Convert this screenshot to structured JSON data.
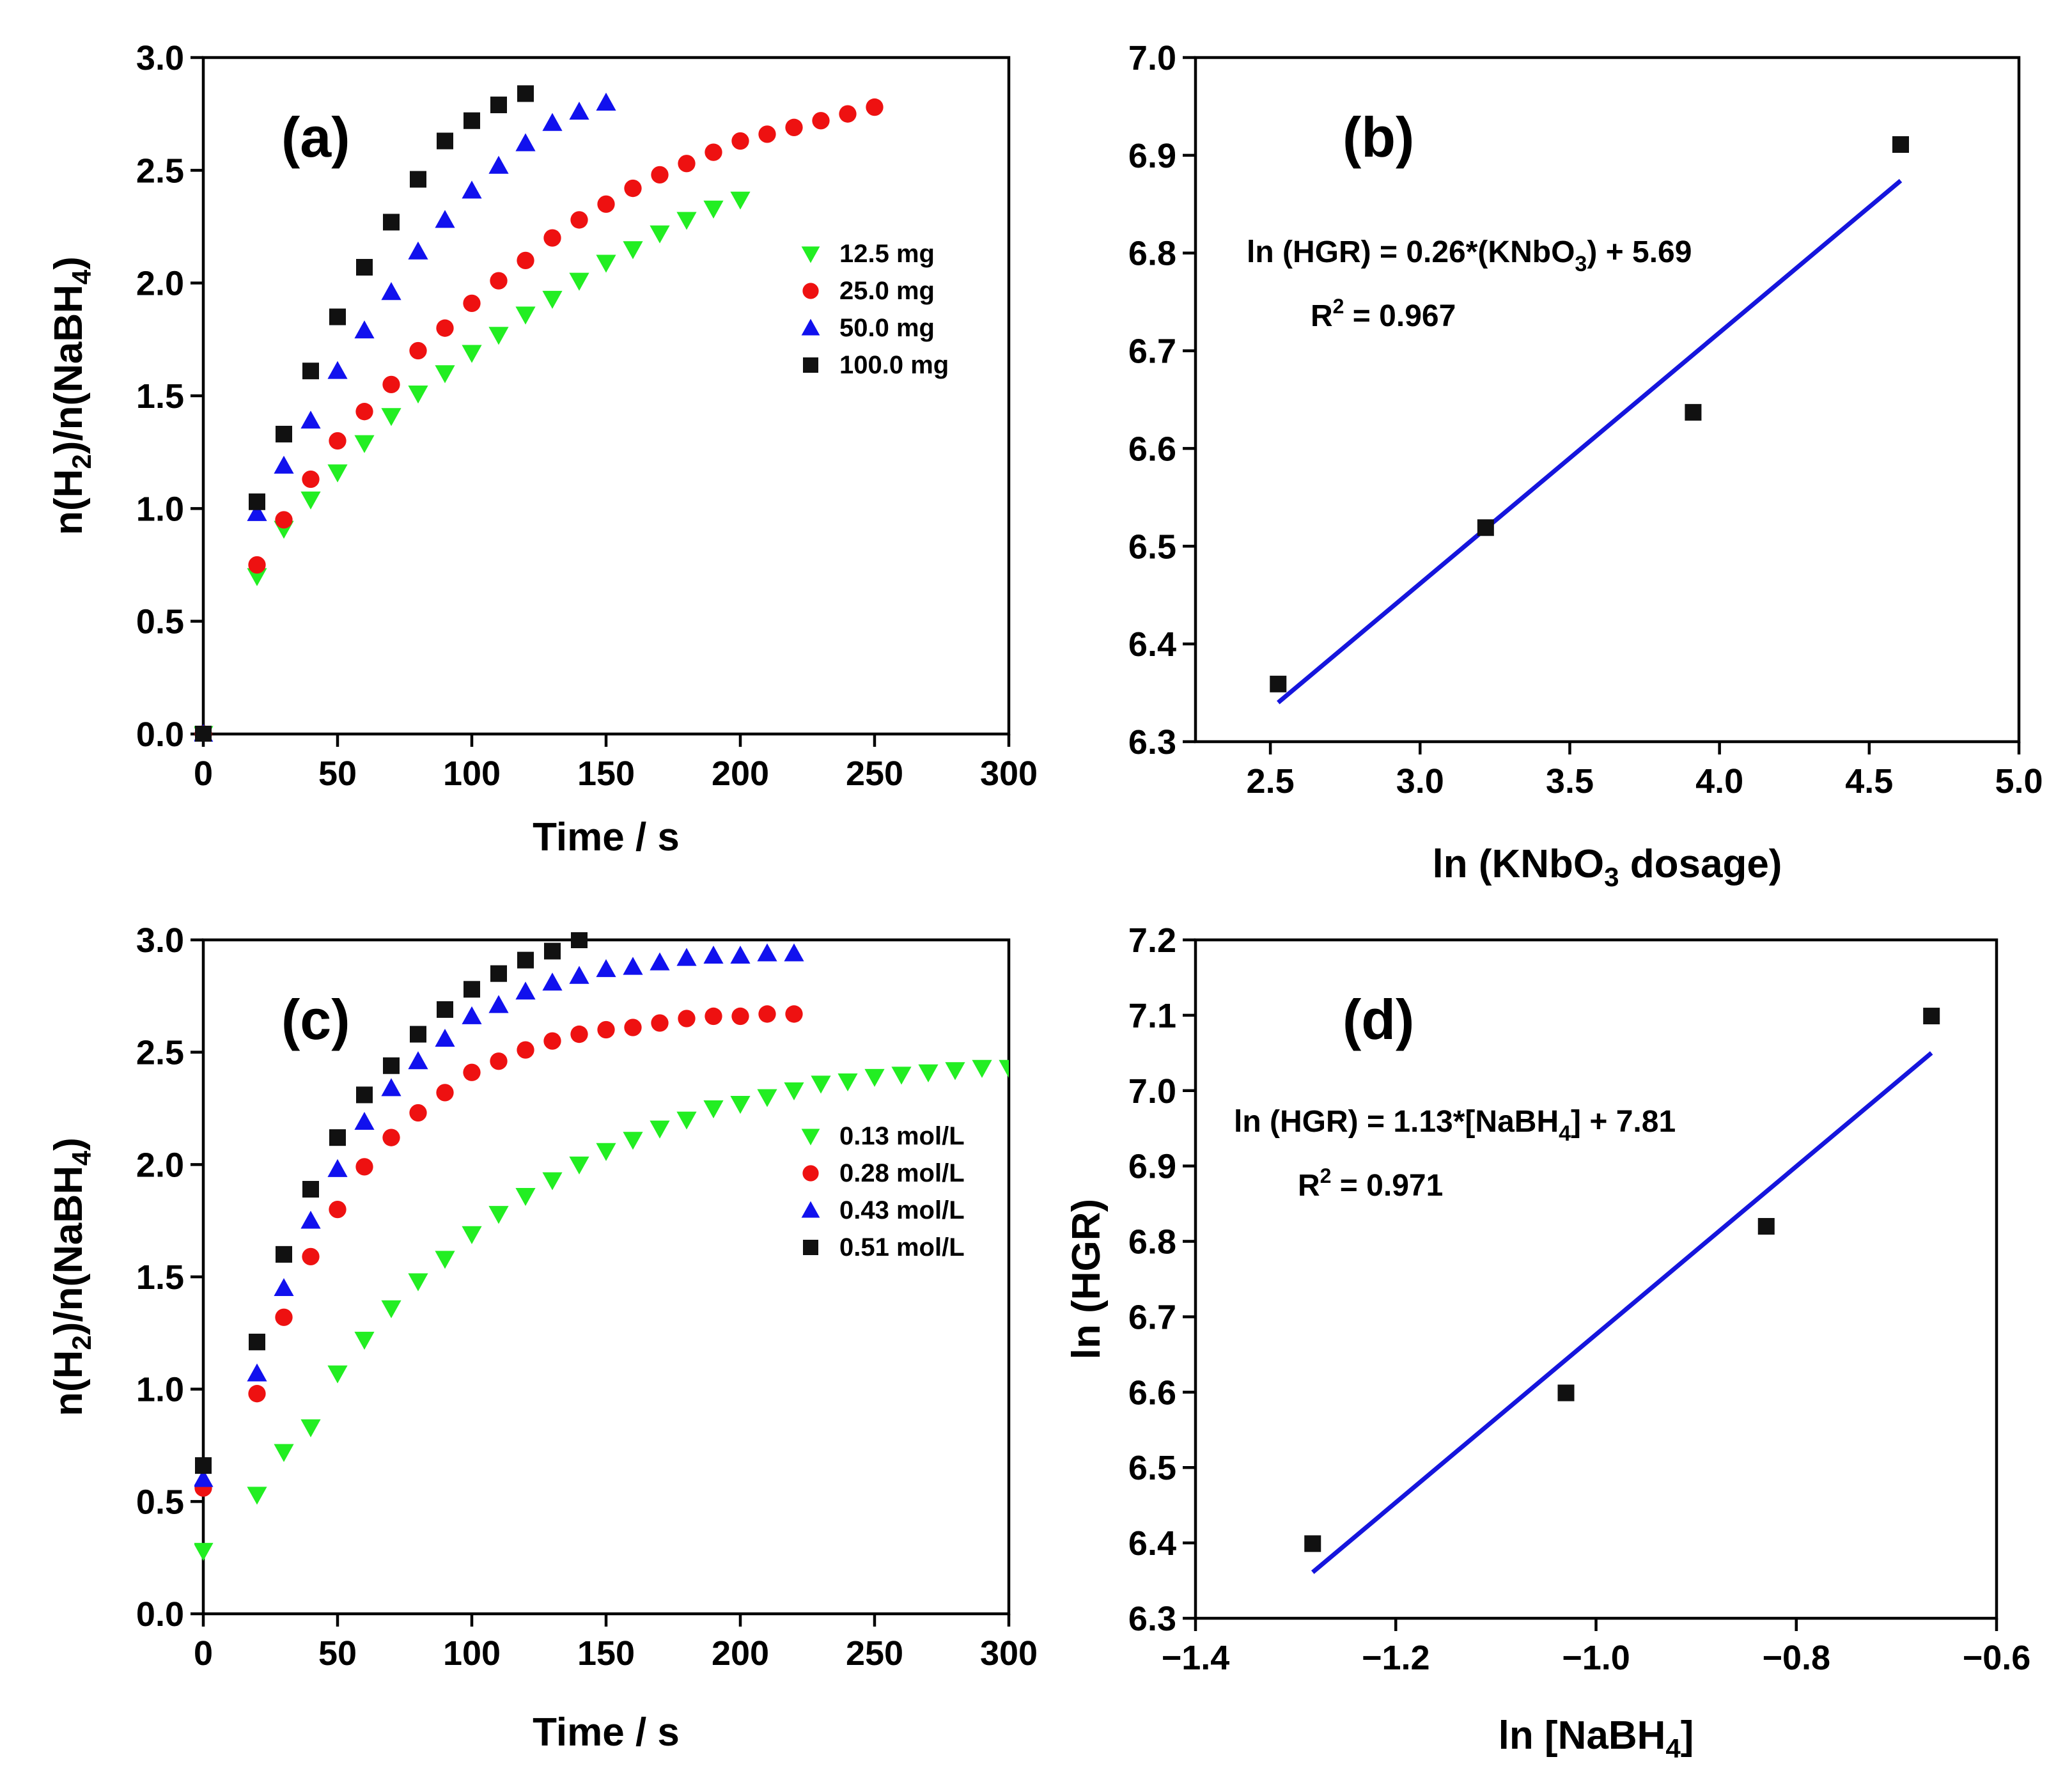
{
  "chart_data": [
    {
      "id": "a",
      "type": "scatter",
      "panel_label": "(a)",
      "xlabel": "Time / s",
      "ylabel_parts": [
        "n(H",
        "2",
        ")/n(NaBH",
        "4",
        ")"
      ],
      "xlim": [
        0,
        300
      ],
      "ylim": [
        0,
        3.0
      ],
      "xticks": [
        0,
        50,
        100,
        150,
        200,
        250,
        300
      ],
      "xtick_labels": [
        "0",
        "50",
        "100",
        "150",
        "200",
        "250",
        "300"
      ],
      "yticks": [
        0,
        0.5,
        1.0,
        1.5,
        2.0,
        2.5,
        3.0
      ],
      "ytick_labels": [
        "0.0",
        "0.5",
        "1.0",
        "1.5",
        "2.0",
        "2.5",
        "3.0"
      ],
      "legend_position": "right",
      "series": [
        {
          "name": "12.5 mg",
          "marker": "triangle-down",
          "color": "#22ee22",
          "x": [
            0,
            20,
            30,
            40,
            50,
            60,
            70,
            80,
            90,
            100,
            110,
            120,
            130,
            140,
            150,
            160,
            170,
            180,
            190,
            200
          ],
          "y": [
            0.0,
            0.7,
            0.91,
            1.04,
            1.16,
            1.29,
            1.41,
            1.51,
            1.6,
            1.69,
            1.77,
            1.86,
            1.93,
            2.01,
            2.09,
            2.15,
            2.22,
            2.28,
            2.33,
            2.37
          ]
        },
        {
          "name": "25.0 mg",
          "marker": "circle",
          "color": "#ee1111",
          "x": [
            0,
            20,
            30,
            40,
            50,
            60,
            70,
            80,
            90,
            100,
            110,
            120,
            130,
            140,
            150,
            160,
            170,
            180,
            190,
            200,
            210,
            220,
            230,
            240,
            250
          ],
          "y": [
            0.0,
            0.75,
            0.95,
            1.13,
            1.3,
            1.43,
            1.55,
            1.7,
            1.8,
            1.91,
            2.01,
            2.1,
            2.2,
            2.28,
            2.35,
            2.42,
            2.48,
            2.53,
            2.58,
            2.63,
            2.66,
            2.69,
            2.72,
            2.75,
            2.78
          ]
        },
        {
          "name": "50.0 mg",
          "marker": "triangle-up",
          "color": "#1111ee",
          "x": [
            0,
            20,
            30,
            40,
            50,
            60,
            70,
            80,
            90,
            100,
            110,
            120,
            130,
            140,
            150
          ],
          "y": [
            0.0,
            0.98,
            1.19,
            1.39,
            1.61,
            1.79,
            1.96,
            2.14,
            2.28,
            2.41,
            2.52,
            2.62,
            2.71,
            2.76,
            2.8
          ]
        },
        {
          "name": "100.0 mg",
          "marker": "square",
          "color": "#111111",
          "x": [
            0,
            20,
            30,
            40,
            50,
            60,
            70,
            80,
            90,
            100,
            110,
            120
          ],
          "y": [
            0.0,
            1.03,
            1.33,
            1.61,
            1.85,
            2.07,
            2.27,
            2.46,
            2.63,
            2.72,
            2.79,
            2.84
          ]
        }
      ]
    },
    {
      "id": "b",
      "type": "scatter",
      "panel_label": "(b)",
      "xlabel_parts": [
        "ln (KNbO",
        "3",
        " dosage)"
      ],
      "ylabel": "",
      "xlim": [
        2.25,
        5.0
      ],
      "ylim": [
        6.3,
        7.0
      ],
      "xticks": [
        2.5,
        3.0,
        3.5,
        4.0,
        4.5,
        5.0
      ],
      "xtick_labels": [
        "2.5",
        "3.0",
        "3.5",
        "4.0",
        "4.5",
        "5.0"
      ],
      "yticks": [
        6.3,
        6.4,
        6.5,
        6.6,
        6.7,
        6.8,
        6.9,
        7.0
      ],
      "ytick_labels": [
        "6.3",
        "6.4",
        "6.5",
        "6.6",
        "6.7",
        "6.8",
        "6.9",
        "7.0"
      ],
      "points": {
        "color": "#111111",
        "marker": "square",
        "x": [
          2.526,
          3.219,
          3.912,
          4.605
        ],
        "y": [
          6.359,
          6.519,
          6.637,
          6.911
        ]
      },
      "fit_line": {
        "color": "#1515dd",
        "x": [
          2.526,
          4.605
        ],
        "y": [
          6.34,
          6.874
        ]
      },
      "equation_parts": [
        "ln (HGR) = 0.26*(KNbO",
        "3",
        ") + 5.69"
      ],
      "r2_label": "R",
      "r2_sup": "2",
      "r2_value": " = 0.967"
    },
    {
      "id": "c",
      "type": "scatter",
      "panel_label": "(c)",
      "xlabel": "Time / s",
      "ylabel_parts": [
        "n(H",
        "2",
        ")/n(NaBH",
        "4",
        ")"
      ],
      "xlim": [
        0,
        300
      ],
      "ylim": [
        0,
        3.0
      ],
      "xticks": [
        0,
        50,
        100,
        150,
        200,
        250,
        300
      ],
      "xtick_labels": [
        "0",
        "50",
        "100",
        "150",
        "200",
        "250",
        "300"
      ],
      "yticks": [
        0,
        0.5,
        1.0,
        1.5,
        2.0,
        2.5,
        3.0
      ],
      "ytick_labels": [
        "0.0",
        "0.5",
        "1.0",
        "1.5",
        "2.0",
        "2.5",
        "3.0"
      ],
      "legend_position": "right",
      "series": [
        {
          "name": "0.13 mol/L",
          "marker": "triangle-down",
          "color": "#22ee22",
          "x": [
            0,
            20,
            30,
            40,
            50,
            60,
            70,
            80,
            90,
            100,
            110,
            120,
            130,
            140,
            150,
            160,
            170,
            180,
            190,
            200,
            210,
            220,
            230,
            240,
            250,
            260,
            270,
            280,
            290,
            300
          ],
          "y": [
            0.28,
            0.53,
            0.72,
            0.83,
            1.07,
            1.22,
            1.36,
            1.48,
            1.58,
            1.69,
            1.78,
            1.86,
            1.93,
            2.0,
            2.06,
            2.11,
            2.16,
            2.2,
            2.25,
            2.27,
            2.3,
            2.33,
            2.36,
            2.37,
            2.39,
            2.4,
            2.41,
            2.42,
            2.43,
            2.43
          ]
        },
        {
          "name": "0.28 mol/L",
          "marker": "circle",
          "color": "#ee1111",
          "x": [
            0,
            20,
            30,
            40,
            50,
            60,
            70,
            80,
            90,
            100,
            110,
            120,
            130,
            140,
            150,
            160,
            170,
            180,
            190,
            200,
            210,
            220
          ],
          "y": [
            0.56,
            0.98,
            1.32,
            1.59,
            1.8,
            1.99,
            2.12,
            2.23,
            2.32,
            2.41,
            2.46,
            2.51,
            2.55,
            2.58,
            2.6,
            2.61,
            2.63,
            2.65,
            2.66,
            2.66,
            2.67,
            2.67
          ]
        },
        {
          "name": "0.43 mol/L",
          "marker": "triangle-up",
          "color": "#1111ee",
          "x": [
            0,
            20,
            30,
            40,
            50,
            60,
            70,
            80,
            90,
            100,
            110,
            120,
            130,
            140,
            150,
            160,
            170,
            180,
            190,
            200,
            210,
            220
          ],
          "y": [
            0.6,
            1.07,
            1.45,
            1.75,
            1.98,
            2.19,
            2.34,
            2.46,
            2.56,
            2.66,
            2.71,
            2.77,
            2.81,
            2.84,
            2.87,
            2.88,
            2.9,
            2.92,
            2.93,
            2.93,
            2.94,
            2.94
          ]
        },
        {
          "name": "0.51 mol/L",
          "marker": "square",
          "color": "#111111",
          "x": [
            0,
            20,
            30,
            40,
            50,
            60,
            70,
            80,
            90,
            100,
            110,
            120,
            130,
            140
          ],
          "y": [
            0.66,
            1.21,
            1.6,
            1.89,
            2.12,
            2.31,
            2.44,
            2.58,
            2.69,
            2.78,
            2.85,
            2.91,
            2.95,
            3.0
          ]
        }
      ]
    },
    {
      "id": "d",
      "type": "scatter",
      "panel_label": "(d)",
      "xlabel_parts": [
        "ln [NaBH",
        "4",
        "]"
      ],
      "ylabel": "ln (HGR)",
      "xlim": [
        -1.4,
        -0.6
      ],
      "ylim": [
        6.3,
        7.2
      ],
      "xticks": [
        -1.4,
        -1.2,
        -1.0,
        -0.8,
        -0.6
      ],
      "xtick_labels": [
        "−1.4",
        "−1.2",
        "−1.0",
        "−0.8",
        "−0.6"
      ],
      "yticks": [
        6.3,
        6.4,
        6.5,
        6.6,
        6.7,
        6.8,
        6.9,
        7.0,
        7.1,
        7.2
      ],
      "ytick_labels": [
        "6.3",
        "6.4",
        "6.5",
        "6.6",
        "6.7",
        "6.8",
        "6.9",
        "7.0",
        "7.1",
        "7.2"
      ],
      "points": {
        "color": "#111111",
        "marker": "square",
        "x": [
          -1.283,
          -1.03,
          -0.83,
          -0.665
        ],
        "y": [
          6.399,
          6.599,
          6.82,
          7.099
        ]
      },
      "fit_line": {
        "color": "#1515dd",
        "x": [
          -1.283,
          -0.665
        ],
        "y": [
          6.361,
          7.05
        ]
      },
      "equation_parts": [
        "ln (HGR) = 1.13*[NaBH",
        "4",
        "] + 7.81"
      ],
      "r2_label": "R",
      "r2_sup": "2",
      "r2_value": " = 0.971"
    }
  ]
}
